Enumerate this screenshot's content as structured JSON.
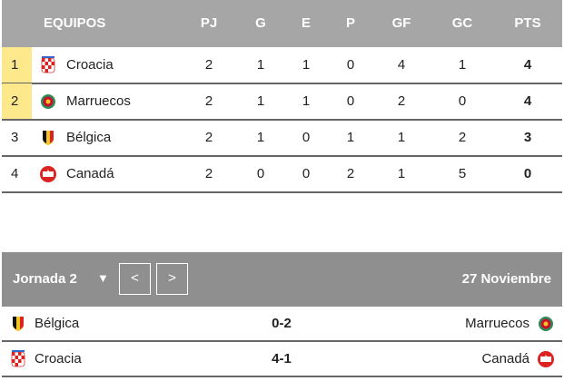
{
  "table": {
    "headers": [
      "EQUIPOS",
      "PJ",
      "G",
      "E",
      "P",
      "GF",
      "GC",
      "PTS"
    ],
    "rows": [
      [
        1,
        "Croacia",
        2,
        1,
        1,
        0,
        4,
        1,
        4
      ],
      [
        2,
        "Marruecos",
        2,
        1,
        1,
        0,
        2,
        0,
        4
      ],
      [
        3,
        "Bélgica",
        2,
        1,
        0,
        1,
        1,
        2,
        3
      ],
      [
        4,
        "Canadá",
        2,
        0,
        0,
        2,
        1,
        5,
        0
      ]
    ]
  },
  "matchday": {
    "title": "Jornada 2",
    "prev": "<",
    "next": ">",
    "date": "27 Noviembre",
    "matches": [
      {
        "home": "Bélgica",
        "score": "0-2",
        "away": "Marruecos"
      },
      {
        "home": "Croacia",
        "score": "4-1",
        "away": "Canadá"
      }
    ]
  }
}
